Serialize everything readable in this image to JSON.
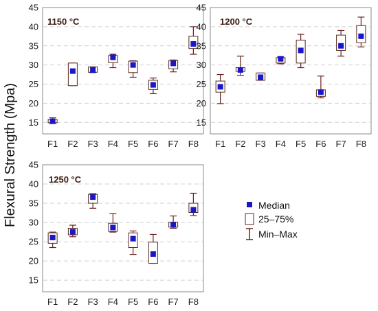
{
  "ylabel": "Flexural Strength (Mpa)",
  "colors": {
    "median": "#1a16c9",
    "box": "#5a2a1a",
    "whisker": "#6b1f1f",
    "grid": "#cfcfcf"
  },
  "legend": {
    "median": "Median",
    "box": "25–75%",
    "range": "Min–Max"
  },
  "chart_data": [
    {
      "type": "box",
      "title": "1150 °C",
      "categories": [
        "F1",
        "F2",
        "F3",
        "F4",
        "F5",
        "F6",
        "F7",
        "F8"
      ],
      "ylim": [
        12,
        45
      ],
      "yticks": [
        15,
        20,
        25,
        30,
        35,
        40,
        45
      ],
      "grid": true,
      "boxes": [
        {
          "min": 14.7,
          "q1": 14.9,
          "median": 15.3,
          "q3": 15.8,
          "max": 16.2
        },
        {
          "min": 24.6,
          "q1": 24.6,
          "median": 28.4,
          "q3": 30.5,
          "max": 30.5
        },
        {
          "min": 28.0,
          "q1": 28.1,
          "median": 28.7,
          "q3": 29.5,
          "max": 29.5
        },
        {
          "min": 29.3,
          "q1": 30.6,
          "median": 32.0,
          "q3": 32.5,
          "max": 32.8
        },
        {
          "min": 26.8,
          "q1": 28.0,
          "median": 30.0,
          "q3": 31.0,
          "max": 31.1
        },
        {
          "min": 22.5,
          "q1": 23.6,
          "median": 24.8,
          "q3": 26.0,
          "max": 26.6
        },
        {
          "min": 28.2,
          "q1": 29.0,
          "median": 30.4,
          "q3": 31.2,
          "max": 31.3
        },
        {
          "min": 32.8,
          "q1": 34.3,
          "median": 35.5,
          "q3": 37.5,
          "max": 40.0
        }
      ]
    },
    {
      "type": "box",
      "title": "1200 °C",
      "categories": [
        "F1",
        "F2",
        "F3",
        "F4",
        "F5",
        "F6",
        "F7",
        "F8"
      ],
      "ylim": [
        12,
        45
      ],
      "yticks": [
        15,
        20,
        25,
        30,
        35,
        40,
        45
      ],
      "grid": true,
      "boxes": [
        {
          "min": 19.9,
          "q1": 22.9,
          "median": 24.3,
          "q3": 25.8,
          "max": 27.5
        },
        {
          "min": 27.3,
          "q1": 28.3,
          "median": 28.7,
          "q3": 29.3,
          "max": 32.3
        },
        {
          "min": 26.0,
          "q1": 26.0,
          "median": 26.8,
          "q3": 27.9,
          "max": 27.9
        },
        {
          "min": 30.3,
          "q1": 30.5,
          "median": 31.6,
          "q3": 31.9,
          "max": 32.1
        },
        {
          "min": 29.3,
          "q1": 30.5,
          "median": 33.8,
          "q3": 36.5,
          "max": 38.0
        },
        {
          "min": 21.4,
          "q1": 21.8,
          "median": 22.9,
          "q3": 23.5,
          "max": 27.1
        },
        {
          "min": 32.3,
          "q1": 33.8,
          "median": 35.0,
          "q3": 37.8,
          "max": 39.0
        },
        {
          "min": 34.7,
          "q1": 35.8,
          "median": 37.5,
          "q3": 40.3,
          "max": 42.5
        }
      ]
    },
    {
      "type": "box",
      "title": "1250 °C",
      "categories": [
        "F1",
        "F2",
        "F3",
        "F4",
        "F5",
        "F6",
        "F7",
        "F8"
      ],
      "ylim": [
        12,
        45
      ],
      "yticks": [
        15,
        20,
        25,
        30,
        35,
        40,
        45
      ],
      "grid": true,
      "boxes": [
        {
          "min": 23.5,
          "q1": 24.6,
          "median": 26.1,
          "q3": 27.3,
          "max": 27.5
        },
        {
          "min": 26.3,
          "q1": 26.8,
          "median": 27.6,
          "q3": 28.5,
          "max": 29.3
        },
        {
          "min": 33.7,
          "q1": 35.0,
          "median": 36.6,
          "q3": 37.3,
          "max": 37.5
        },
        {
          "min": 27.5,
          "q1": 27.7,
          "median": 28.7,
          "q3": 29.8,
          "max": 32.3
        },
        {
          "min": 21.7,
          "q1": 23.5,
          "median": 25.8,
          "q3": 27.3,
          "max": 27.8
        },
        {
          "min": 19.4,
          "q1": 19.4,
          "median": 21.8,
          "q3": 24.9,
          "max": 26.9
        },
        {
          "min": 28.5,
          "q1": 28.8,
          "median": 29.4,
          "q3": 30.1,
          "max": 31.7
        },
        {
          "min": 31.8,
          "q1": 32.6,
          "median": 33.3,
          "q3": 35.0,
          "max": 37.6
        }
      ]
    }
  ]
}
